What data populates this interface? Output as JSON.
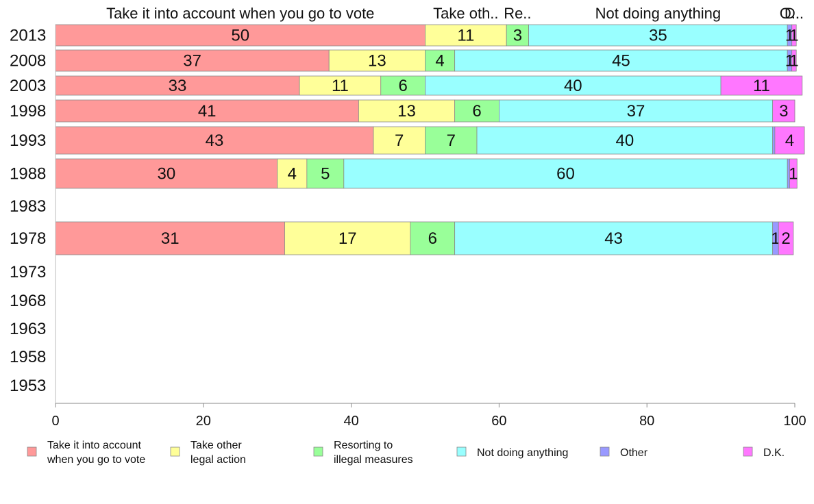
{
  "chart_data": {
    "type": "bar",
    "orientation": "horizontal",
    "stacked": true,
    "categories": [
      "2013",
      "2008",
      "2003",
      "1998",
      "1993",
      "1988",
      "1983",
      "1978",
      "1973",
      "1968",
      "1963",
      "1958",
      "1953"
    ],
    "series": [
      {
        "name": "Take it into account when you go to vote",
        "header_label": "Take it into account when you go to vote",
        "color": "#FF9999",
        "values": [
          50,
          37,
          33,
          41,
          43,
          30,
          null,
          31,
          null,
          null,
          null,
          null,
          null
        ]
      },
      {
        "name": "Take other legal action",
        "header_label": "Take oth..",
        "color": "#FFFF99",
        "values": [
          11,
          13,
          11,
          13,
          7,
          4,
          null,
          17,
          null,
          null,
          null,
          null,
          null
        ]
      },
      {
        "name": "Resorting to illegal measures",
        "header_label": "Re..",
        "color": "#99FF99",
        "values": [
          3,
          4,
          6,
          6,
          7,
          5,
          null,
          6,
          null,
          null,
          null,
          null,
          null
        ]
      },
      {
        "name": "Not doing anything",
        "header_label": "Not doing anything",
        "color": "#99FFFF",
        "values": [
          35,
          45,
          40,
          37,
          40,
          60,
          null,
          43,
          null,
          null,
          null,
          null,
          null
        ]
      },
      {
        "name": "Other",
        "header_label": "O..",
        "color": "#9999FF",
        "values": [
          0.6,
          0.6,
          0,
          0,
          0.3,
          0.3,
          null,
          0.8,
          null,
          null,
          null,
          null,
          null
        ]
      },
      {
        "name": "D.K.",
        "header_label": "D..",
        "color": "#FF77FF",
        "values": [
          0.6,
          0.6,
          11,
          3,
          4,
          1,
          null,
          2,
          null,
          null,
          null,
          null,
          null
        ]
      }
    ],
    "data_labels": [
      [
        "50",
        "11",
        "3",
        "35",
        "1",
        "1"
      ],
      [
        "37",
        "13",
        "4",
        "45",
        "1",
        "1"
      ],
      [
        "33",
        "11",
        "6",
        "40",
        "",
        "11"
      ],
      [
        "41",
        "13",
        "6",
        "37",
        "",
        "3"
      ],
      [
        "43",
        "7",
        "7",
        "40",
        "",
        "4"
      ],
      [
        "30",
        "4",
        "5",
        "60",
        "",
        "1"
      ],
      [],
      [
        "31",
        "17",
        "6",
        "43",
        "1",
        "2"
      ],
      [],
      [],
      [],
      [],
      []
    ],
    "legend_labels": [
      [
        "Take it into account",
        "when you go to vote"
      ],
      [
        "Take other",
        "legal action"
      ],
      [
        "Resorting to",
        "illegal measures"
      ],
      [
        "Not doing anything"
      ],
      [
        "Other"
      ],
      [
        "D.K."
      ]
    ],
    "xlim": [
      0,
      100
    ],
    "xticks": [
      0,
      20,
      40,
      60,
      80,
      100
    ],
    "title": "",
    "xlabel": "",
    "ylabel": "",
    "grid": false,
    "legend_position": "bottom"
  }
}
